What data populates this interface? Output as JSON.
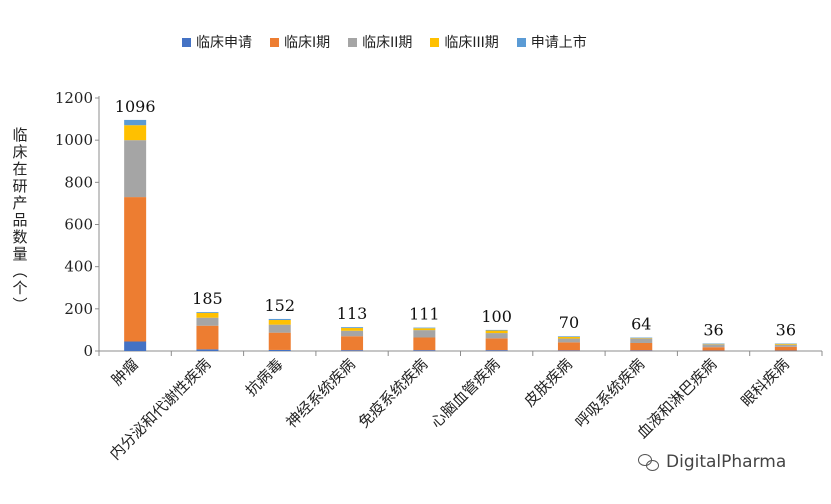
{
  "chart_data": {
    "type": "bar",
    "stacked": true,
    "categories": [
      "肿瘤",
      "内分泌和代谢性疾病",
      "抗病毒",
      "神经系统疾病",
      "免疫系统疾病",
      "心脑血管疾病",
      "皮肤疾病",
      "呼吸系统疾病",
      "血液和淋巴疾病",
      "眼科疾病"
    ],
    "totals": [
      1096,
      185,
      152,
      113,
      111,
      100,
      70,
      64,
      36,
      36
    ],
    "series": [
      {
        "name": "临床申请",
        "color": "#4472C4",
        "values": [
          45,
          8,
          5,
          4,
          4,
          4,
          3,
          3,
          2,
          2
        ]
      },
      {
        "name": "临床I期",
        "color": "#ED7D31",
        "values": [
          685,
          112,
          82,
          66,
          60,
          56,
          38,
          35,
          16,
          18
        ]
      },
      {
        "name": "临床II期",
        "color": "#A5A5A5",
        "values": [
          270,
          38,
          38,
          26,
          35,
          25,
          18,
          22,
          14,
          10
        ]
      },
      {
        "name": "临床III期",
        "color": "#FFC000",
        "values": [
          71,
          23,
          22,
          13,
          9,
          12,
          8,
          2,
          2,
          4
        ]
      },
      {
        "name": "申请上市",
        "color": "#5B9BD5",
        "values": [
          25,
          4,
          5,
          4,
          3,
          3,
          3,
          2,
          2,
          2
        ]
      }
    ],
    "ylabel": "临床在研产品数量（个）",
    "xlabel": "",
    "ylim": [
      0,
      1200
    ],
    "yticks": [
      0,
      200,
      400,
      600,
      800,
      1000,
      1200
    ],
    "grid": false,
    "legend": "top"
  },
  "watermark": "DigitalPharma"
}
